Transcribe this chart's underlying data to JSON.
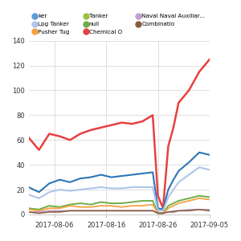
{
  "title": "",
  "background_color": "#ffffff",
  "grid_color": "#e0e0e0",
  "x_start": "2017-08-01",
  "x_end": "2017-09-05",
  "x_ticks": [
    "2017-08-06",
    "2017-08-16",
    "2017-08-26",
    "2017-09-05"
  ],
  "legend_entries": [
    {
      "label": "ker",
      "color": "#5b9bd5"
    },
    {
      "label": "Lpg Tanker",
      "color": "#aec6e8"
    },
    {
      "label": "Pusher Tug",
      "color": "#f4a240"
    },
    {
      "label": "Tanker",
      "color": "#9dc242"
    },
    {
      "label": "null",
      "color": "#70ad47"
    },
    {
      "label": "Chemical O",
      "color": "#e84040"
    },
    {
      "label": "Naval Naval Auxiliar...",
      "color": "#c0a0d0"
    },
    {
      "label": "Combinatio",
      "color": "#8b5c3e"
    }
  ],
  "series": {
    "chemical_tanker": {
      "color": "#e84040",
      "lw": 1.8,
      "dates": [
        "2017-08-01",
        "2017-08-03",
        "2017-08-05",
        "2017-08-07",
        "2017-08-09",
        "2017-08-11",
        "2017-08-13",
        "2017-08-15",
        "2017-08-17",
        "2017-08-19",
        "2017-08-21",
        "2017-08-23",
        "2017-08-25",
        "2017-08-26",
        "2017-08-27",
        "2017-08-28",
        "2017-08-29",
        "2017-08-30",
        "2017-09-01",
        "2017-09-03",
        "2017-09-05"
      ],
      "values": [
        62,
        52,
        65,
        63,
        60,
        65,
        68,
        70,
        72,
        74,
        73,
        75,
        80,
        15,
        5,
        55,
        70,
        90,
        100,
        115,
        125
      ]
    },
    "tanker_dark_blue": {
      "color": "#2e75b6",
      "lw": 1.5,
      "dates": [
        "2017-08-01",
        "2017-08-03",
        "2017-08-05",
        "2017-08-07",
        "2017-08-09",
        "2017-08-11",
        "2017-08-13",
        "2017-08-15",
        "2017-08-17",
        "2017-08-19",
        "2017-08-21",
        "2017-08-23",
        "2017-08-25",
        "2017-08-26",
        "2017-08-27",
        "2017-08-28",
        "2017-08-29",
        "2017-08-30",
        "2017-09-01",
        "2017-09-03",
        "2017-09-05"
      ],
      "values": [
        22,
        18,
        25,
        28,
        26,
        29,
        30,
        32,
        30,
        31,
        32,
        33,
        34,
        5,
        4,
        20,
        28,
        35,
        42,
        50,
        48
      ]
    },
    "lpg_tanker": {
      "color": "#aec6e8",
      "lw": 1.5,
      "dates": [
        "2017-08-01",
        "2017-08-03",
        "2017-08-05",
        "2017-08-07",
        "2017-08-09",
        "2017-08-11",
        "2017-08-13",
        "2017-08-15",
        "2017-08-17",
        "2017-08-19",
        "2017-08-21",
        "2017-08-23",
        "2017-08-25",
        "2017-08-26",
        "2017-08-27",
        "2017-08-28",
        "2017-08-29",
        "2017-08-30",
        "2017-09-01",
        "2017-09-03",
        "2017-09-05"
      ],
      "values": [
        16,
        13,
        18,
        20,
        19,
        20,
        21,
        22,
        21,
        21,
        22,
        22,
        22,
        3,
        3,
        14,
        20,
        26,
        32,
        38,
        36
      ]
    },
    "null_green": {
      "color": "#70ad47",
      "lw": 1.4,
      "dates": [
        "2017-08-01",
        "2017-08-03",
        "2017-08-05",
        "2017-08-07",
        "2017-08-09",
        "2017-08-11",
        "2017-08-13",
        "2017-08-15",
        "2017-08-17",
        "2017-08-19",
        "2017-08-21",
        "2017-08-23",
        "2017-08-25",
        "2017-08-26",
        "2017-08-27",
        "2017-08-28",
        "2017-08-29",
        "2017-08-30",
        "2017-09-01",
        "2017-09-03",
        "2017-09-05"
      ],
      "values": [
        5,
        4,
        7,
        6,
        8,
        9,
        8,
        10,
        9,
        9,
        10,
        11,
        11,
        1,
        1,
        7,
        9,
        11,
        13,
        15,
        14
      ]
    },
    "pusher_tug": {
      "color": "#f4a240",
      "lw": 1.3,
      "dates": [
        "2017-08-01",
        "2017-08-03",
        "2017-08-05",
        "2017-08-07",
        "2017-08-09",
        "2017-08-11",
        "2017-08-13",
        "2017-08-15",
        "2017-08-17",
        "2017-08-19",
        "2017-08-21",
        "2017-08-23",
        "2017-08-25",
        "2017-08-26",
        "2017-08-27",
        "2017-08-28",
        "2017-08-29",
        "2017-08-30",
        "2017-09-01",
        "2017-09-03",
        "2017-09-05"
      ],
      "values": [
        4,
        3,
        5,
        5,
        7,
        6,
        6,
        7,
        7,
        6,
        7,
        7,
        8,
        1,
        1,
        5,
        7,
        9,
        11,
        13,
        12
      ]
    },
    "naval": {
      "color": "#c0a0d0",
      "lw": 1.2,
      "dates": [
        "2017-08-01",
        "2017-08-03",
        "2017-08-05",
        "2017-08-07",
        "2017-08-09",
        "2017-08-11",
        "2017-08-13",
        "2017-08-15",
        "2017-08-17",
        "2017-08-19",
        "2017-08-21",
        "2017-08-23",
        "2017-08-25",
        "2017-08-26",
        "2017-08-27",
        "2017-08-28",
        "2017-08-29",
        "2017-08-30",
        "2017-09-01",
        "2017-09-03",
        "2017-09-05"
      ],
      "values": [
        2,
        2,
        3,
        3,
        3,
        3,
        3,
        3,
        3,
        3,
        3,
        3,
        3,
        1,
        1,
        2,
        3,
        3,
        4,
        4,
        4
      ]
    },
    "combination": {
      "color": "#8b5c3e",
      "lw": 1.2,
      "dates": [
        "2017-08-01",
        "2017-08-03",
        "2017-08-05",
        "2017-08-07",
        "2017-08-09",
        "2017-08-11",
        "2017-08-13",
        "2017-08-15",
        "2017-08-17",
        "2017-08-19",
        "2017-08-21",
        "2017-08-23",
        "2017-08-25",
        "2017-08-26",
        "2017-08-27",
        "2017-08-28",
        "2017-08-29",
        "2017-08-30",
        "2017-09-01",
        "2017-09-03",
        "2017-09-05"
      ],
      "values": [
        2,
        1,
        2,
        2,
        3,
        3,
        3,
        3,
        3,
        3,
        3,
        3,
        3,
        1,
        1,
        2,
        2,
        3,
        3,
        4,
        3
      ]
    }
  }
}
